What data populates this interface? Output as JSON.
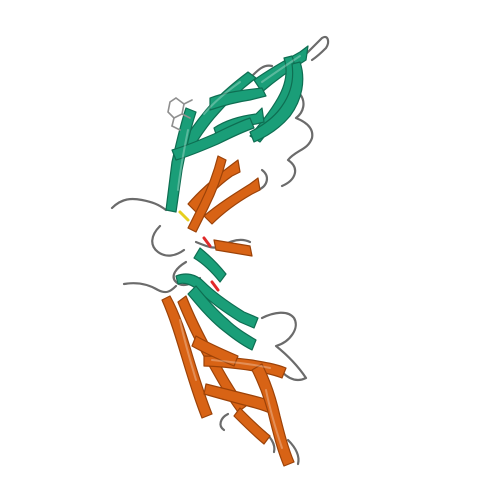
{
  "image": {
    "kind": "protein-ribbon-cartoon",
    "background": "#ffffff"
  },
  "colors": {
    "chain_a_sheet": "#1a9e78",
    "chain_a_sheet_edge": "#0e6e52",
    "chain_b_sheet": "#d86315",
    "chain_b_sheet_edge": "#9c4208",
    "loop": "#6b6b6b",
    "ligand": "#8f8f8f",
    "disulfide": "#e6cf1e",
    "heteroatom": "#e02a2a"
  }
}
